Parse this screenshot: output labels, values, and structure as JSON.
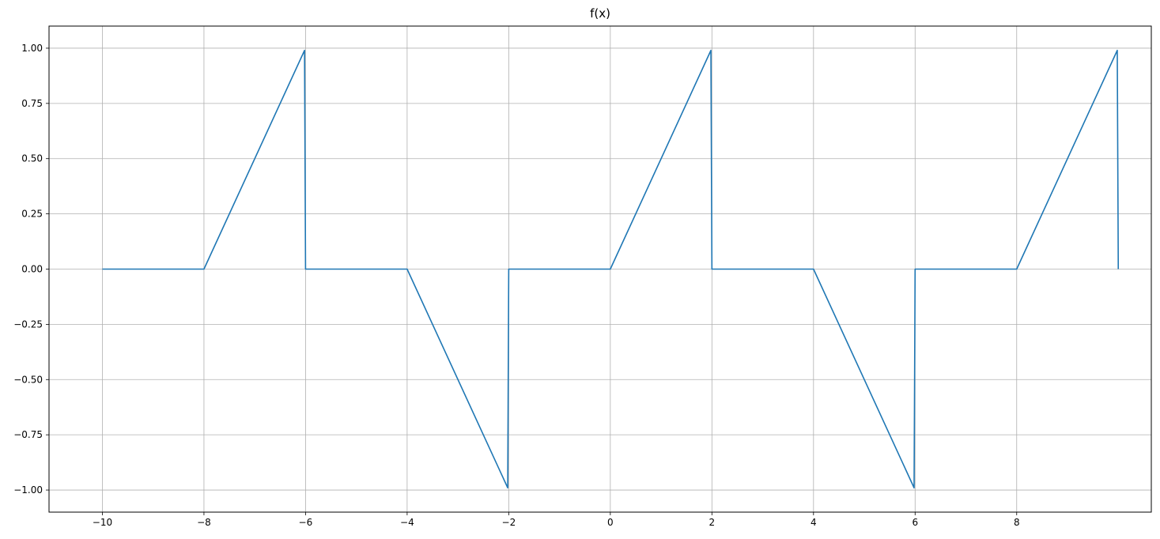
{
  "chart_data": {
    "type": "line",
    "title": "f(x)",
    "xlabel": "",
    "ylabel": "",
    "xlim": [
      -11.05,
      10.65
    ],
    "ylim": [
      -1.1,
      1.1
    ],
    "grid": true,
    "legend": "none",
    "x_ticks": [
      -10,
      -8,
      -6,
      -4,
      -2,
      0,
      2,
      4,
      6,
      8
    ],
    "x_tick_labels": [
      "−10",
      "−8",
      "−6",
      "−4",
      "−2",
      "0",
      "2",
      "4",
      "6",
      "8"
    ],
    "y_ticks": [
      1.0,
      0.75,
      0.5,
      0.25,
      0.0,
      -0.25,
      -0.5,
      -0.75,
      -1.0
    ],
    "y_tick_labels": [
      "1.00",
      "0.75",
      "0.50",
      "0.25",
      "0.00",
      "−0.25",
      "−0.50",
      "−0.75",
      "−1.00"
    ],
    "series": [
      {
        "color": "#1f77b4",
        "x": [
          -10,
          -8,
          -6.02,
          -6.0,
          -4,
          -2.02,
          -2.0,
          0,
          1.98,
          2.0,
          4,
          5.98,
          6.0,
          8,
          9.98,
          10.0
        ],
        "y": [
          0,
          0,
          0.99,
          0,
          0,
          -0.99,
          0,
          0,
          0.99,
          0,
          0,
          -0.99,
          0,
          0,
          0.99,
          0
        ]
      }
    ],
    "colors": {
      "grid": "#b0b0b0",
      "axes": "#000000",
      "line": "#1f77b4"
    }
  }
}
